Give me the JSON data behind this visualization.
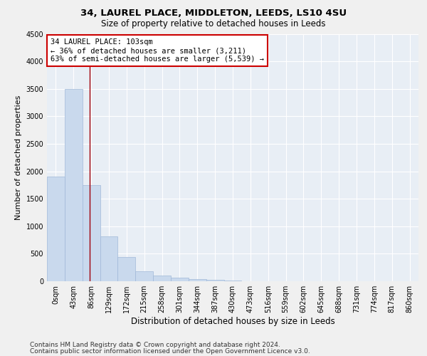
{
  "title": "34, LAUREL PLACE, MIDDLETON, LEEDS, LS10 4SU",
  "subtitle": "Size of property relative to detached houses in Leeds",
  "xlabel": "Distribution of detached houses by size in Leeds",
  "ylabel": "Number of detached properties",
  "categories": [
    "0sqm",
    "43sqm",
    "86sqm",
    "129sqm",
    "172sqm",
    "215sqm",
    "258sqm",
    "301sqm",
    "344sqm",
    "387sqm",
    "430sqm",
    "473sqm",
    "516sqm",
    "559sqm",
    "602sqm",
    "645sqm",
    "688sqm",
    "731sqm",
    "774sqm",
    "817sqm",
    "860sqm"
  ],
  "bar_values": [
    1900,
    3500,
    1750,
    820,
    440,
    180,
    100,
    60,
    40,
    20,
    10,
    5,
    3,
    2,
    1,
    1,
    0,
    0,
    0,
    0,
    0
  ],
  "bar_color": "#c9d9ed",
  "bar_edge_color": "#a0b8d8",
  "bg_color": "#e8eef5",
  "grid_color": "#ffffff",
  "vline_color": "#a0000a",
  "annotation_text": "34 LAUREL PLACE: 103sqm\n← 36% of detached houses are smaller (3,211)\n63% of semi-detached houses are larger (5,539) →",
  "annotation_box_color": "#ffffff",
  "annotation_box_edge": "#cc0000",
  "ylim": [
    0,
    4500
  ],
  "yticks": [
    0,
    500,
    1000,
    1500,
    2000,
    2500,
    3000,
    3500,
    4000,
    4500
  ],
  "footer1": "Contains HM Land Registry data © Crown copyright and database right 2024.",
  "footer2": "Contains public sector information licensed under the Open Government Licence v3.0.",
  "title_fontsize": 9.5,
  "subtitle_fontsize": 8.5,
  "axis_label_fontsize": 8,
  "tick_fontsize": 7,
  "annotation_fontsize": 7.5,
  "footer_fontsize": 6.5
}
